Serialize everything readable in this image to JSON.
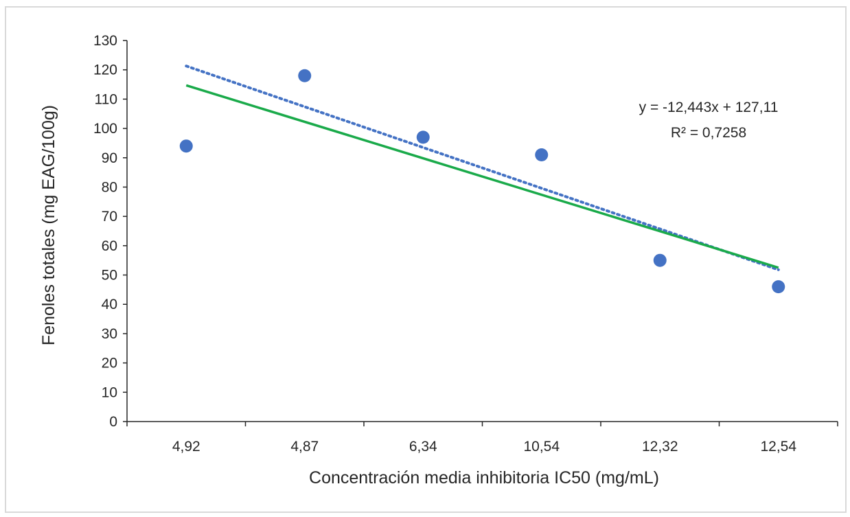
{
  "chart_data": {
    "type": "scatter",
    "categories": [
      "4,92",
      "4,87",
      "6,34",
      "10,54",
      "12,32",
      "12,54"
    ],
    "series": [
      {
        "values": [
          94,
          118,
          97,
          91,
          55,
          46
        ],
        "color": "#4472c4"
      }
    ],
    "trendlines": [
      {
        "kind": "linear-fit",
        "style": "dotted",
        "color": "#4472c4",
        "values": [
          121.3,
          103.8,
          86.4,
          72.9,
          61.6,
          51.8
        ]
      },
      {
        "kind": "linear",
        "style": "solid",
        "color": "#1aaa4a",
        "values": [
          114.7,
          102.2,
          89.8,
          77.3,
          64.9,
          52.5
        ]
      }
    ],
    "xlabel": "Concentración media inhibitoria IC50 (mg/mL)",
    "ylabel": "Fenoles totales (mg EAG/100g)",
    "ylim": [
      0,
      130
    ],
    "yticks": [
      0,
      10,
      20,
      30,
      40,
      50,
      60,
      70,
      80,
      90,
      100,
      110,
      120,
      130
    ],
    "equation": "y = -12,443x + 127,11",
    "r2": "R² = 0,7258",
    "grid": false
  }
}
